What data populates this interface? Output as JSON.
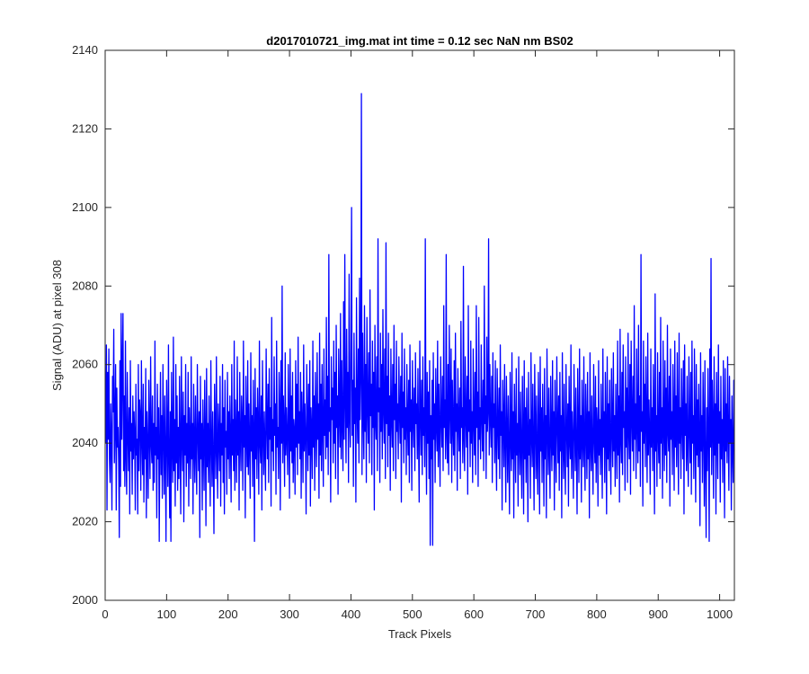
{
  "chart_data": {
    "type": "line",
    "title": "d2017010721_img.mat int time = 0.12 sec  NaN nm BS02",
    "xlabel": "Track Pixels",
    "ylabel": "Signal (ADU) at pixel 308",
    "xlim": [
      0,
      1024
    ],
    "ylim": [
      2000,
      2140
    ],
    "xticks": [
      0,
      100,
      200,
      300,
      400,
      500,
      600,
      700,
      800,
      900,
      1000
    ],
    "yticks": [
      2000,
      2020,
      2040,
      2060,
      2080,
      2100,
      2120,
      2140
    ],
    "grid": false,
    "line_color": "#0000ff",
    "series": [
      {
        "x_start": 1,
        "x_step": 1,
        "values": [
          2040,
          2065,
          2023,
          2058,
          2041,
          2064,
          2036,
          2030,
          2050,
          2042,
          2023,
          2057,
          2048,
          2069,
          2035,
          2045,
          2060,
          2023,
          2054,
          2039,
          2044,
          2035,
          2016,
          2061,
          2029,
          2073,
          2041,
          2059,
          2073,
          2033,
          2052,
          2029,
          2066,
          2037,
          2027,
          2058,
          2043,
          2033,
          2049,
          2022,
          2061,
          2038,
          2045,
          2027,
          2052,
          2036,
          2048,
          2042,
          2023,
          2055,
          2037,
          2041,
          2022,
          2060,
          2033,
          2051,
          2047,
          2028,
          2061,
          2041,
          2032,
          2055,
          2025,
          2044,
          2036,
          2059,
          2021,
          2048,
          2039,
          2026,
          2056,
          2043,
          2031,
          2062,
          2040,
          2035,
          2052,
          2028,
          2045,
          2030,
          2066,
          2037,
          2044,
          2021,
          2055,
          2036,
          2049,
          2015,
          2040,
          2058,
          2032,
          2047,
          2026,
          2060,
          2042,
          2027,
          2052,
          2038,
          2015,
          2056,
          2043,
          2029,
          2065,
          2036,
          2021,
          2048,
          2015,
          2058,
          2040,
          2030,
          2067,
          2033,
          2046,
          2024,
          2060,
          2035,
          2052,
          2028,
          2044,
          2031,
          2057,
          2039,
          2022,
          2062,
          2041,
          2033,
          2053,
          2020,
          2047,
          2037,
          2060,
          2029,
          2045,
          2035,
          2058,
          2024,
          2049,
          2040,
          2031,
          2062,
          2036,
          2045,
          2022,
          2055,
          2040,
          2030,
          2052,
          2038,
          2027,
          2060,
          2043,
          2033,
          2048,
          2016,
          2057,
          2036,
          2045,
          2023,
          2051,
          2039,
          2028,
          2056,
          2042,
          2019,
          2059,
          2034,
          2045,
          2030,
          2052,
          2038,
          2024,
          2061,
          2040,
          2029,
          2048,
          2036,
          2017,
          2055,
          2043,
          2031,
          2062,
          2038,
          2026,
          2050,
          2041,
          2033,
          2057,
          2024,
          2045,
          2037,
          2060,
          2030,
          2049,
          2022,
          2056,
          2039,
          2043,
          2027,
          2058,
          2036,
          2048,
          2031,
          2052,
          2041,
          2025,
          2060,
          2037,
          2046,
          2033,
          2066,
          2028,
          2051,
          2042,
          2030,
          2062,
          2037,
          2048,
          2023,
          2058,
          2041,
          2033,
          2052,
          2045,
          2028,
          2066,
          2039,
          2047,
          2021,
          2057,
          2043,
          2034,
          2061,
          2032,
          2050,
          2040,
          2026,
          2063,
          2038,
          2047,
          2029,
          2056,
          2042,
          2015,
          2059,
          2036,
          2049,
          2031,
          2054,
          2044,
          2027,
          2066,
          2040,
          2035,
          2052,
          2023,
          2061,
          2043,
          2032,
          2048,
          2038,
          2028,
          2064,
          2045,
          2036,
          2055,
          2030,
          2059,
          2041,
          2049,
          2024,
          2072,
          2038,
          2046,
          2033,
          2062,
          2042,
          2050,
          2027,
          2066,
          2039,
          2044,
          2031,
          2058,
          2048,
          2023,
          2061,
          2040,
          2080,
          2035,
          2052,
          2044,
          2029,
          2063,
          2037,
          2049,
          2041,
          2032,
          2060,
          2045,
          2026,
          2064,
          2038,
          2052,
          2035,
          2058,
          2030,
          2046,
          2043,
          2027,
          2061,
          2039,
          2055,
          2032,
          2067,
          2040,
          2048,
          2036,
          2058,
          2026,
          2053,
          2044,
          2030,
          2065,
          2038,
          2050,
          2041,
          2022,
          2060,
          2046,
          2033,
          2055,
          2037,
          2061,
          2024,
          2049,
          2043,
          2031,
          2066,
          2039,
          2052,
          2028,
          2058,
          2045,
          2034,
          2063,
          2041,
          2050,
          2026,
          2068,
          2037,
          2055,
          2033,
          2060,
          2044,
          2029,
          2064,
          2042,
          2051,
          2036,
          2072,
          2039,
          2057,
          2032,
          2088,
          2043,
          2049,
          2025,
          2062,
          2046,
          2054,
          2035,
          2066,
          2040,
          2058,
          2031,
          2070,
          2044,
          2052,
          2027,
          2064,
          2048,
          2039,
          2073,
          2036,
          2061,
          2045,
          2033,
          2076,
          2041,
          2088,
          2050,
          2035,
          2069,
          2044,
          2058,
          2030,
          2083,
          2047,
          2039,
          2065,
          2100,
          2042,
          2056,
          2029,
          2068,
          2045,
          2054,
          2025,
          2077,
          2049,
          2040,
          2064,
          2035,
          2082,
          2046,
          2057,
          2129,
          2032,
          2068,
          2048,
          2036,
          2075,
          2043,
          2060,
          2030,
          2072,
          2050,
          2040,
          2063,
          2035,
          2079,
          2047,
          2055,
          2032,
          2066,
          2044,
          2058,
          2023,
          2070,
          2046,
          2041,
          2062,
          2033,
          2092,
          2048,
          2054,
          2030,
          2068,
          2043,
          2060,
          2036,
          2074,
          2049,
          2040,
          2064,
          2031,
          2091,
          2045,
          2057,
          2034,
          2068,
          2042,
          2052,
          2028,
          2064,
          2047,
          2039,
          2060,
          2033,
          2070,
          2046,
          2055,
          2031,
          2066,
          2043,
          2050,
          2036,
          2062,
          2048,
          2040,
          2057,
          2025,
          2068,
          2044,
          2053,
          2035,
          2064,
          2041,
          2049,
          2032,
          2060,
          2046,
          2037,
          2056,
          2030,
          2065,
          2043,
          2051,
          2028,
          2061,
          2047,
          2039,
          2054,
          2033,
          2063,
          2045,
          2050,
          2036,
          2059,
          2041,
          2025,
          2066,
          2048,
          2037,
          2056,
          2032,
          2062,
          2042,
          2049,
          2034,
          2092,
          2044,
          2027,
          2058,
          2040,
          2053,
          2031,
          2061,
          2014,
          2047,
          2036,
          2056,
          2014,
          2063,
          2041,
          2050,
          2030,
          2059,
          2045,
          2038,
          2066,
          2034,
          2055,
          2043,
          2029,
          2062,
          2047,
          2039,
          2057,
          2033,
          2075,
          2044,
          2051,
          2036,
          2088,
          2042,
          2035,
          2060,
          2032,
          2070,
          2048,
          2040,
          2064,
          2030,
          2056,
          2045,
          2037,
          2061,
          2033,
          2068,
          2043,
          2050,
          2028,
          2059,
          2046,
          2038,
          2054,
          2031,
          2071,
          2044,
          2049,
          2035,
          2085,
          2041,
          2033,
          2062,
          2047,
          2039,
          2057,
          2027,
          2075,
          2043,
          2051,
          2034,
          2066,
          2040,
          2048,
          2030,
          2064,
          2046,
          2037,
          2058,
          2032,
          2075,
          2044,
          2053,
          2029,
          2072,
          2041,
          2049,
          2036,
          2065,
          2047,
          2038,
          2056,
          2033,
          2080,
          2045,
          2052,
          2031,
          2067,
          2043,
          2048,
          2092,
          2037,
          2060,
          2046,
          2039,
          2057,
          2030,
          2063,
          2044,
          2050,
          2035,
          2061,
          2040,
          2028,
          2059,
          2045,
          2036,
          2054,
          2031,
          2065,
          2042,
          2048,
          2023,
          2056,
          2046,
          2034,
          2060,
          2040,
          2025,
          2057,
          2044,
          2030,
          2052,
          2038,
          2022,
          2058,
          2042,
          2033,
          2063,
          2036,
          2048,
          2021,
          2055,
          2043,
          2030,
          2059,
          2037,
          2045,
          2024,
          2062,
          2040,
          2032,
          2053,
          2038,
          2026,
          2057,
          2044,
          2022,
          2061,
          2036,
          2049,
          2030,
          2054,
          2041,
          2020,
          2058,
          2037,
          2046,
          2026,
          2063,
          2042,
          2034,
          2055,
          2039,
          2023,
          2060,
          2045,
          2031,
          2052,
          2036,
          2027,
          2058,
          2043,
          2022,
          2062,
          2038,
          2049,
          2030,
          2055,
          2041,
          2024,
          2059,
          2036,
          2047,
          2021,
          2064,
          2044,
          2032,
          2054,
          2039,
          2026,
          2057,
          2042,
          2033,
          2061,
          2037,
          2048,
          2023,
          2056,
          2040,
          2030,
          2062,
          2045,
          2035,
          2052,
          2028,
          2058,
          2038,
          2047,
          2021,
          2063,
          2042,
          2031,
          2055,
          2037,
          2027,
          2060,
          2044,
          2034,
          2050,
          2024,
          2057,
          2041,
          2036,
          2065,
          2031,
          2048,
          2040,
          2026,
          2060,
          2045,
          2033,
          2054,
          2038,
          2022,
          2059,
          2043,
          2030,
          2064,
          2036,
          2047,
          2025,
          2056,
          2041,
          2034,
          2062,
          2039,
          2028,
          2055,
          2044,
          2031,
          2058,
          2036,
          2048,
          2021,
          2063,
          2040,
          2033,
          2052,
          2038,
          2027,
          2060,
          2042,
          2035,
          2057,
          2030,
          2049,
          2044,
          2024,
          2061,
          2037,
          2046,
          2032,
          2055,
          2041,
          2026,
          2064,
          2039,
          2048,
          2030,
          2058,
          2043,
          2022,
          2062,
          2036,
          2050,
          2033,
          2056,
          2040,
          2027,
          2059,
          2045,
          2034,
          2063,
          2038,
          2047,
          2029,
          2055,
          2042,
          2031,
          2066,
          2037,
          2052,
          2025,
          2069,
          2041,
          2035,
          2058,
          2032,
          2065,
          2044,
          2048,
          2028,
          2062,
          2039,
          2054,
          2030,
          2068,
          2043,
          2036,
          2060,
          2027,
          2066,
          2047,
          2038,
          2057,
          2033,
          2075,
          2041,
          2050,
          2031,
          2064,
          2045,
          2035,
          2070,
          2038,
          2052,
          2029,
          2088,
          2043,
          2048,
          2024,
          2066,
          2040,
          2055,
          2034,
          2062,
          2046,
          2030,
          2068,
          2037,
          2051,
          2042,
          2027,
          2064,
          2039,
          2049,
          2033,
          2060,
          2044,
          2022,
          2078,
          2038,
          2047,
          2029,
          2063,
          2042,
          2035,
          2058,
          2031,
          2072,
          2040,
          2049,
          2026,
          2066,
          2045,
          2033,
          2061,
          2037,
          2054,
          2030,
          2070,
          2043,
          2038,
          2057,
          2024,
          2064,
          2041,
          2048,
          2032,
          2060,
          2046,
          2028,
          2066,
          2039,
          2052,
          2034,
          2063,
          2043,
          2027,
          2068,
          2040,
          2049,
          2031,
          2059,
          2045,
          2036,
          2061,
          2022,
          2065,
          2042,
          2050,
          2033,
          2057,
          2038,
          2029,
          2062,
          2044,
          2035,
          2058,
          2027,
          2066,
          2040,
          2047,
          2031,
          2064,
          2043,
          2025,
          2060,
          2037,
          2051,
          2034,
          2055,
          2041,
          2019,
          2063,
          2038,
          2047,
          2030,
          2058,
          2044,
          2024,
          2061,
          2036,
          2016,
          2049,
          2033,
          2059,
          2042,
          2015,
          2064,
          2039,
          2087,
          2032,
          2056,
          2045,
          2026,
          2062,
          2037,
          2050,
          2022,
          2058,
          2043,
          2031,
          2065,
          2040,
          2048,
          2025,
          2057,
          2036,
          2046,
          2030,
          2061,
          2044,
          2021,
          2059,
          2038,
          2050,
          2035,
          2062,
          2042,
          2028,
          2057,
          2040,
          2046,
          2023,
          2052,
          2038,
          2030,
          2056,
          2043,
          2025,
          2054,
          2037,
          2048,
          2023,
          2045,
          2040,
          2029,
          2042,
          2036
        ]
      }
    ]
  }
}
